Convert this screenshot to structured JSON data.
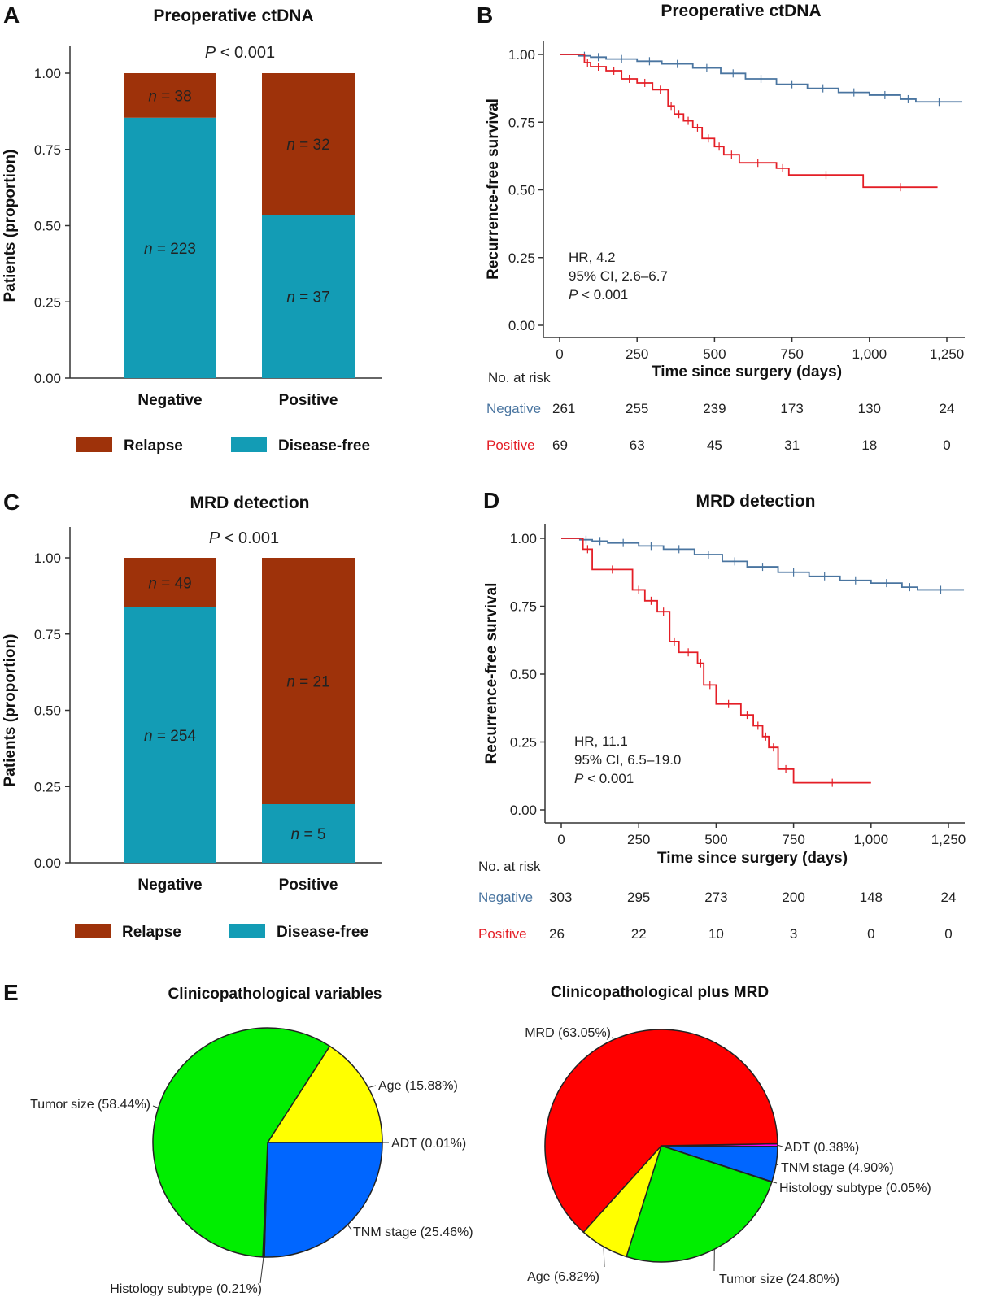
{
  "panels": {
    "a": {
      "letter": "A",
      "title": "Preoperative ctDNA",
      "p_italic": "P",
      "p_rest": " < 0.001"
    },
    "b": {
      "letter": "B",
      "title": "Preoperative ctDNA"
    },
    "c": {
      "letter": "C",
      "title": "MRD detection",
      "p_italic": "P",
      "p_rest": " < 0.001"
    },
    "d": {
      "letter": "D",
      "title": "MRD detection"
    },
    "e": {
      "letter": "E"
    }
  },
  "chart_data": [
    {
      "id": "A",
      "type": "bar",
      "stacked": true,
      "title": "Preoperative ctDNA",
      "ylabel": "Patients (proportion)",
      "ylim": [
        0,
        1
      ],
      "yticks": [
        "0.00",
        "0.25",
        "0.50",
        "0.75",
        "1.00"
      ],
      "categories": [
        "Negative",
        "Positive"
      ],
      "series": [
        {
          "name": "Disease-free",
          "color": "#139CB5",
          "values": [
            0.854,
            0.536
          ],
          "labels": [
            "n = 223",
            "n = 37"
          ]
        },
        {
          "name": "Relapse",
          "color": "#9E320A",
          "values": [
            0.146,
            0.464
          ],
          "labels": [
            "n = 38",
            "n = 32"
          ]
        }
      ],
      "annotation": "P < 0.001",
      "legend": {
        "placement": "bottom",
        "items": [
          "Relapse",
          "Disease-free"
        ]
      }
    },
    {
      "id": "B",
      "type": "line",
      "subtype": "kaplan-meier",
      "title": "Preoperative ctDNA",
      "xlabel": "Time since surgery (days)",
      "ylabel": "Recurrence-free survival",
      "xlim": [
        0,
        1300
      ],
      "ylim": [
        0,
        1
      ],
      "xticks": [
        "0",
        "250",
        "500",
        "750",
        "1,000",
        "1,250"
      ],
      "yticks": [
        "0.00",
        "0.25",
        "0.50",
        "0.75",
        "1.00"
      ],
      "series": [
        {
          "name": "Negative",
          "color": "#4A75A0",
          "x": [
            0,
            60,
            100,
            150,
            250,
            330,
            430,
            520,
            600,
            700,
            800,
            900,
            1000,
            1100,
            1150,
            1300
          ],
          "y": [
            1.0,
            0.995,
            0.99,
            0.983,
            0.975,
            0.965,
            0.95,
            0.93,
            0.91,
            0.89,
            0.875,
            0.86,
            0.85,
            0.835,
            0.825,
            0.825
          ]
        },
        {
          "name": "Positive",
          "color": "#E41E26",
          "x": [
            0,
            80,
            100,
            150,
            200,
            250,
            300,
            350,
            370,
            400,
            430,
            460,
            500,
            530,
            580,
            700,
            740,
            980,
            1220
          ],
          "y": [
            1.0,
            0.97,
            0.955,
            0.94,
            0.91,
            0.895,
            0.87,
            0.81,
            0.78,
            0.755,
            0.73,
            0.69,
            0.66,
            0.63,
            0.6,
            0.58,
            0.555,
            0.51,
            0.51
          ]
        }
      ],
      "annotations": {
        "hr": "HR, 4.2",
        "ci": "95% CI, 2.6–6.7",
        "p_italic": "P",
        "p_rest": " < 0.001"
      },
      "risk_table": {
        "header": "No. at risk",
        "rows": [
          {
            "name": "Negative",
            "values": [
              "261",
              "255",
              "239",
              "173",
              "130",
              "24"
            ]
          },
          {
            "name": "Positive",
            "values": [
              "69",
              "63",
              "45",
              "31",
              "18",
              "0"
            ]
          }
        ]
      }
    },
    {
      "id": "C",
      "type": "bar",
      "stacked": true,
      "title": "MRD detection",
      "ylabel": "Patients (proportion)",
      "ylim": [
        0,
        1
      ],
      "yticks": [
        "0.00",
        "0.25",
        "0.50",
        "0.75",
        "1.00"
      ],
      "categories": [
        "Negative",
        "Positive"
      ],
      "series": [
        {
          "name": "Disease-free",
          "color": "#139CB5",
          "values": [
            0.838,
            0.192
          ],
          "labels": [
            "n = 254",
            "n = 5"
          ]
        },
        {
          "name": "Relapse",
          "color": "#9E320A",
          "values": [
            0.162,
            0.808
          ],
          "labels": [
            "n = 49",
            "n = 21"
          ]
        }
      ],
      "annotation": "P < 0.001",
      "legend": {
        "placement": "bottom",
        "items": [
          "Relapse",
          "Disease-free"
        ]
      }
    },
    {
      "id": "D",
      "type": "line",
      "subtype": "kaplan-meier",
      "title": "MRD detection",
      "xlabel": "Time since surgery (days)",
      "ylabel": "Recurrence-free survival",
      "xlim": [
        0,
        1300
      ],
      "ylim": [
        0,
        1
      ],
      "xticks": [
        "0",
        "250",
        "500",
        "750",
        "1,000",
        "1,250"
      ],
      "yticks": [
        "0.00",
        "0.25",
        "0.50",
        "0.75",
        "1.00"
      ],
      "series": [
        {
          "name": "Negative",
          "color": "#4A75A0",
          "x": [
            0,
            60,
            100,
            150,
            250,
            330,
            430,
            520,
            600,
            700,
            800,
            900,
            1000,
            1100,
            1150,
            1300
          ],
          "y": [
            1.0,
            0.995,
            0.99,
            0.983,
            0.972,
            0.96,
            0.94,
            0.915,
            0.895,
            0.875,
            0.86,
            0.845,
            0.835,
            0.82,
            0.81,
            0.81
          ]
        },
        {
          "name": "Positive",
          "color": "#E41E26",
          "x": [
            0,
            70,
            100,
            230,
            270,
            310,
            350,
            380,
            440,
            460,
            500,
            580,
            620,
            650,
            670,
            700,
            750,
            1000
          ],
          "y": [
            1.0,
            0.96,
            0.885,
            0.81,
            0.77,
            0.73,
            0.62,
            0.58,
            0.54,
            0.46,
            0.39,
            0.35,
            0.31,
            0.27,
            0.23,
            0.15,
            0.1,
            0.1
          ]
        }
      ],
      "annotations": {
        "hr": "HR, 11.1",
        "ci": "95% CI, 6.5–19.0",
        "p_italic": "P",
        "p_rest": " < 0.001"
      },
      "risk_table": {
        "header": "No. at risk",
        "rows": [
          {
            "name": "Negative",
            "values": [
              "303",
              "295",
              "273",
              "200",
              "148",
              "24"
            ]
          },
          {
            "name": "Positive",
            "values": [
              "26",
              "22",
              "10",
              "3",
              "0",
              "0"
            ]
          }
        ]
      }
    },
    {
      "id": "E1",
      "type": "pie",
      "title": "Clinicopathological variables",
      "slices": [
        {
          "label": "Age (15.88%)",
          "value": 15.88,
          "color": "#FFFF00"
        },
        {
          "label": "ADT (0.01%)",
          "value": 0.01,
          "color": "#FF00FF"
        },
        {
          "label": "TNM stage (25.46%)",
          "value": 25.46,
          "color": "#0066FF"
        },
        {
          "label": "Histology subtype (0.21%)",
          "value": 0.21,
          "color": "#00CC00"
        },
        {
          "label": "Tumor size (58.44%)",
          "value": 58.44,
          "color": "#00EE00"
        }
      ]
    },
    {
      "id": "E2",
      "type": "pie",
      "title": "Clinicopathological plus MRD",
      "slices": [
        {
          "label": "ADT (0.38%)",
          "value": 0.38,
          "color": "#FF00FF"
        },
        {
          "label": "TNM stage (4.90%)",
          "value": 4.9,
          "color": "#0066FF"
        },
        {
          "label": "Histology subtype (0.05%)",
          "value": 0.05,
          "color": "#00CC00"
        },
        {
          "label": "Tumor size (24.80%)",
          "value": 24.8,
          "color": "#00EE00"
        },
        {
          "label": "Age (6.82%)",
          "value": 6.82,
          "color": "#FFFF00"
        },
        {
          "label": "MRD (63.05%)",
          "value": 63.05,
          "color": "#FF0000"
        }
      ]
    }
  ]
}
